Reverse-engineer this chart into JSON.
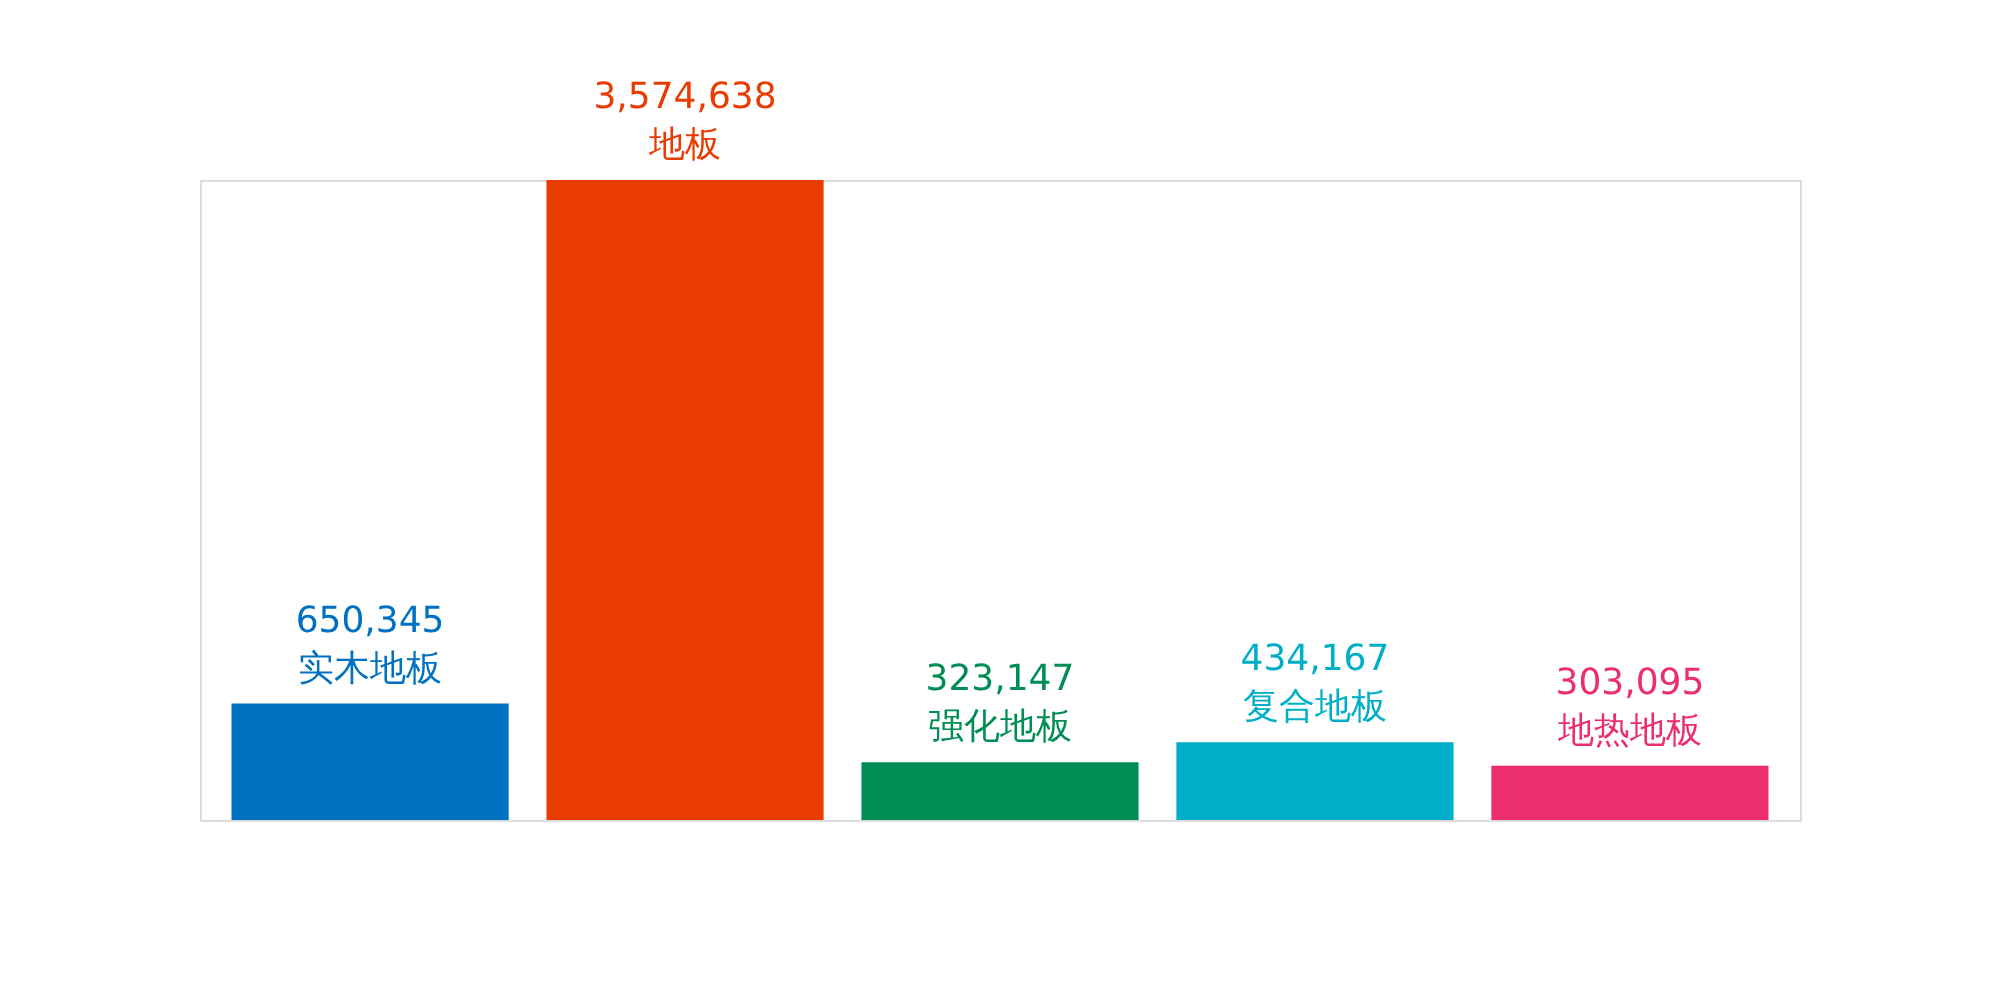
{
  "chart_data": {
    "type": "bar",
    "categories": [
      "实木地板",
      "地板",
      "强化地板",
      "复合地板",
      "地热地板"
    ],
    "values": [
      650345,
      3574638,
      323147,
      434167,
      303095
    ],
    "value_labels": [
      "650,345",
      "3,574,638",
      "323,147",
      "434,167",
      "303,095"
    ],
    "colors": [
      "#0071c1",
      "#e83c02",
      "#008d55",
      "#00afc7",
      "#ec2e70"
    ]
  }
}
